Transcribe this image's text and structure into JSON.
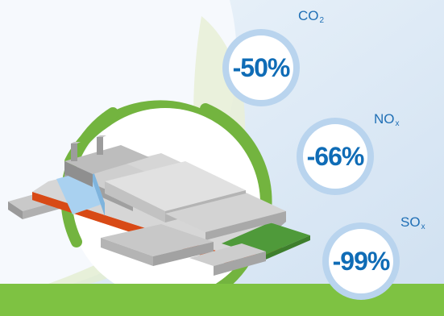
{
  "colors": {
    "background": "#dce9f5",
    "accent_green": "#7ec242",
    "ring_green": "#73b43f",
    "badge_ring": "#b9d4ee",
    "value_blue": "#0f6cb6"
  },
  "icons": [
    "ship-icon"
  ],
  "emissions": [
    {
      "gas": "CO",
      "subscript": "2",
      "value": "-50%"
    },
    {
      "gas": "NO",
      "subscript": "x",
      "value": "-66%"
    },
    {
      "gas": "SO",
      "subscript": "x",
      "value": "-99%"
    }
  ]
}
